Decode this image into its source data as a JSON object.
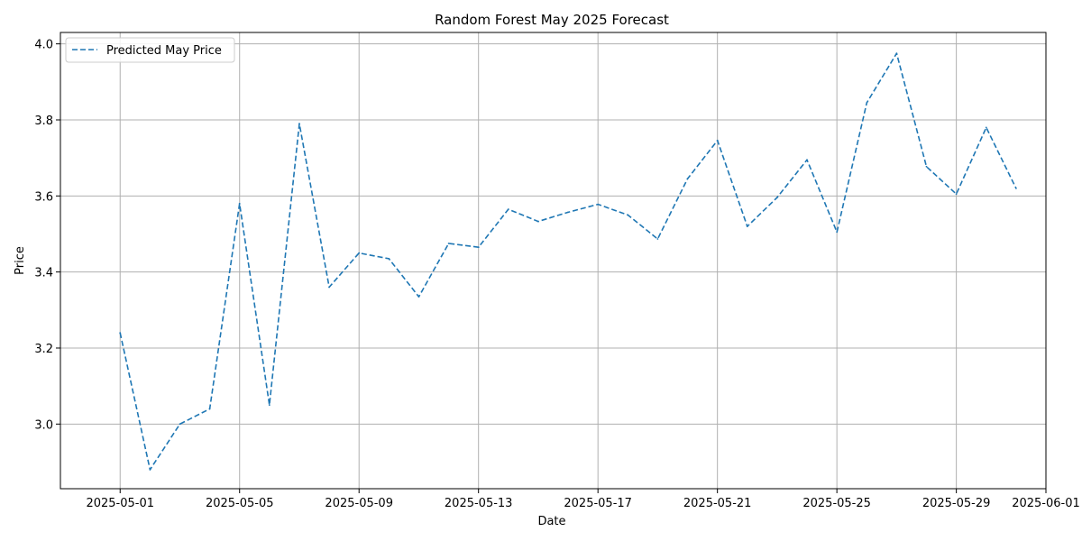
{
  "chart_data": {
    "type": "line",
    "title": "Random Forest May 2025 Forecast",
    "xlabel": "Date",
    "ylabel": "Price",
    "x_axis_type": "date",
    "xlim": [
      "2025-04-29",
      "2025-06-01"
    ],
    "ylim": [
      2.83,
      4.03
    ],
    "grid": true,
    "legend_position": "top-left",
    "x_ticks": [
      "2025-05-01",
      "2025-05-05",
      "2025-05-09",
      "2025-05-13",
      "2025-05-17",
      "2025-05-21",
      "2025-05-25",
      "2025-05-29",
      "2025-06-01"
    ],
    "y_ticks": [
      "3.0",
      "3.2",
      "3.4",
      "3.6",
      "3.8",
      "4.0"
    ],
    "series": [
      {
        "name": "Predicted May Price",
        "color": "#1f77b4",
        "line_style": "dashed",
        "x": [
          "2025-05-01",
          "2025-05-02",
          "2025-05-03",
          "2025-05-04",
          "2025-05-05",
          "2025-05-06",
          "2025-05-07",
          "2025-05-08",
          "2025-05-09",
          "2025-05-10",
          "2025-05-11",
          "2025-05-12",
          "2025-05-13",
          "2025-05-14",
          "2025-05-15",
          "2025-05-16",
          "2025-05-17",
          "2025-05-18",
          "2025-05-19",
          "2025-05-20",
          "2025-05-21",
          "2025-05-22",
          "2025-05-23",
          "2025-05-24",
          "2025-05-25",
          "2025-05-26",
          "2025-05-27",
          "2025-05-28",
          "2025-05-29",
          "2025-05-30",
          "2025-05-31"
        ],
        "y": [
          3.24,
          2.88,
          3.0,
          3.04,
          3.58,
          3.05,
          3.79,
          3.36,
          3.45,
          3.435,
          3.335,
          3.475,
          3.465,
          3.565,
          3.533,
          3.557,
          3.578,
          3.55,
          3.487,
          3.645,
          3.746,
          3.52,
          3.596,
          3.695,
          3.505,
          3.845,
          3.975,
          3.677,
          3.605,
          3.78,
          3.62
        ]
      }
    ]
  }
}
